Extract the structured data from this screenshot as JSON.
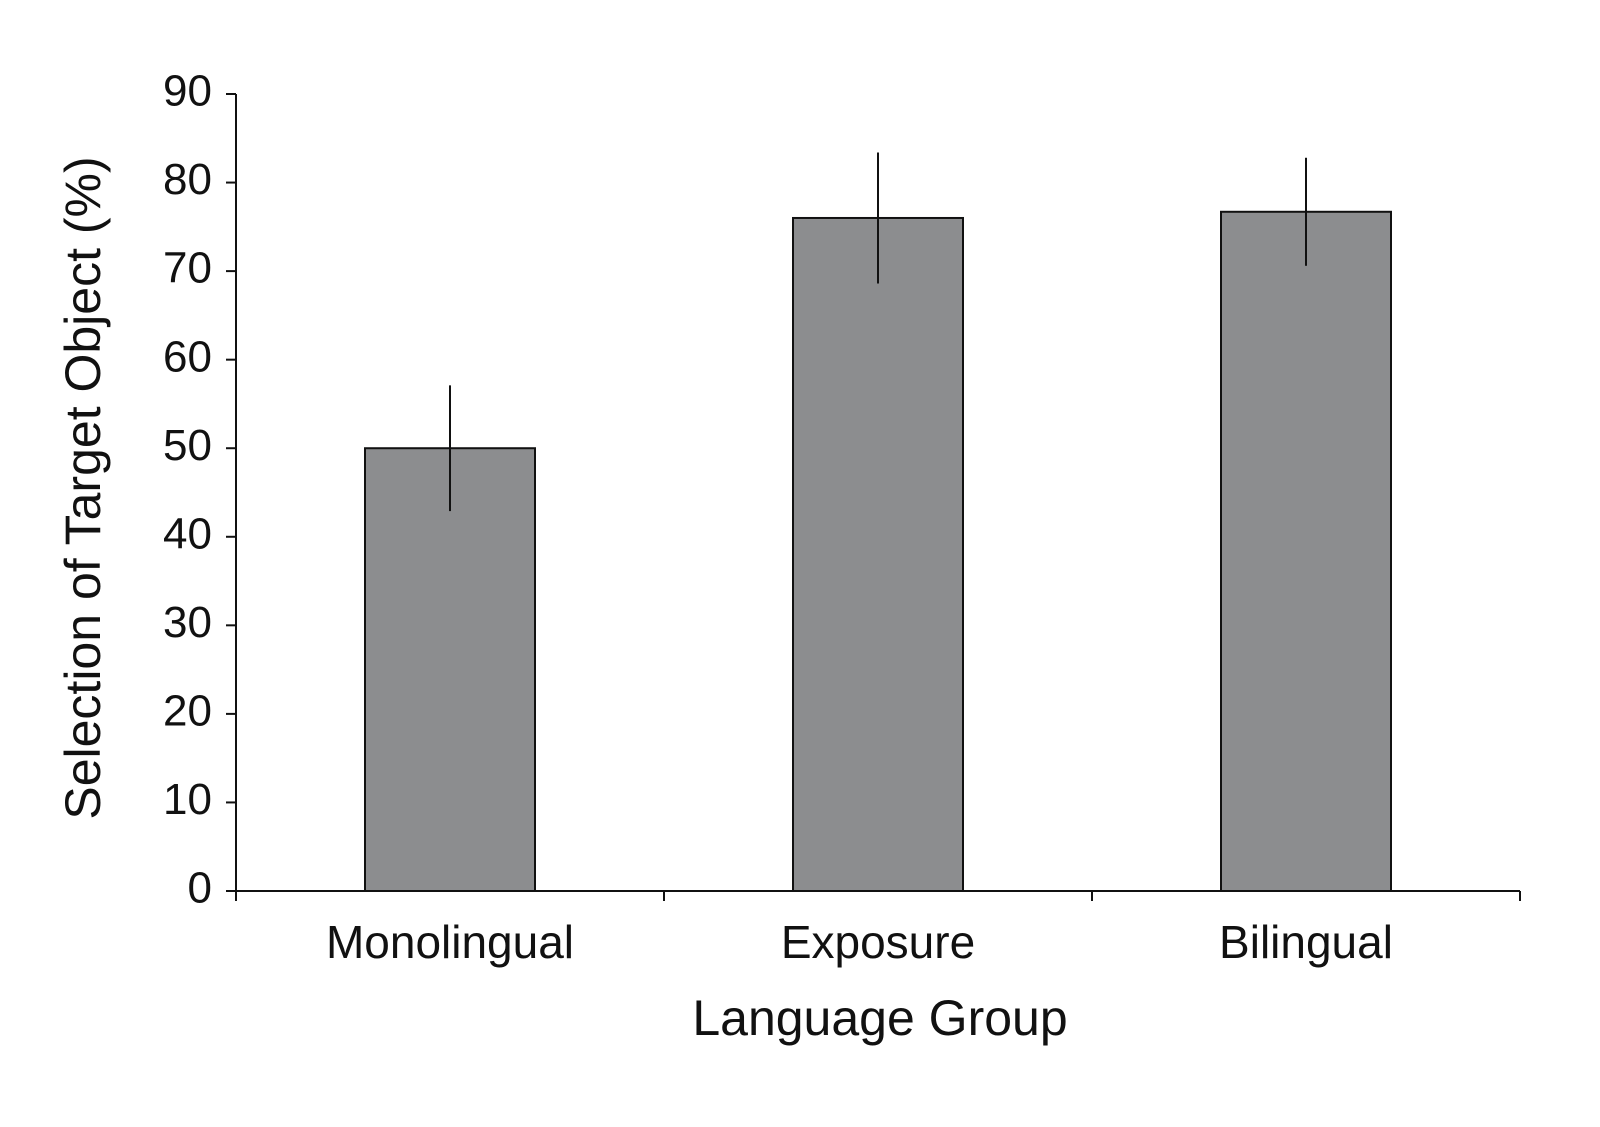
{
  "chart_data": {
    "type": "bar",
    "x_label": "Language Group",
    "y_label": "Selection of Target Object (%)",
    "categories": [
      "Monolingual",
      "Exposure",
      "Bilingual"
    ],
    "values": [
      50,
      76,
      76.7
    ],
    "errors": [
      7.1,
      7.4,
      6.1
    ],
    "color": "#8c8d8f",
    "ylim": [
      0,
      90
    ],
    "yticks": [
      0,
      10,
      20,
      30,
      40,
      50,
      60,
      70,
      80,
      90
    ],
    "grid": false
  }
}
